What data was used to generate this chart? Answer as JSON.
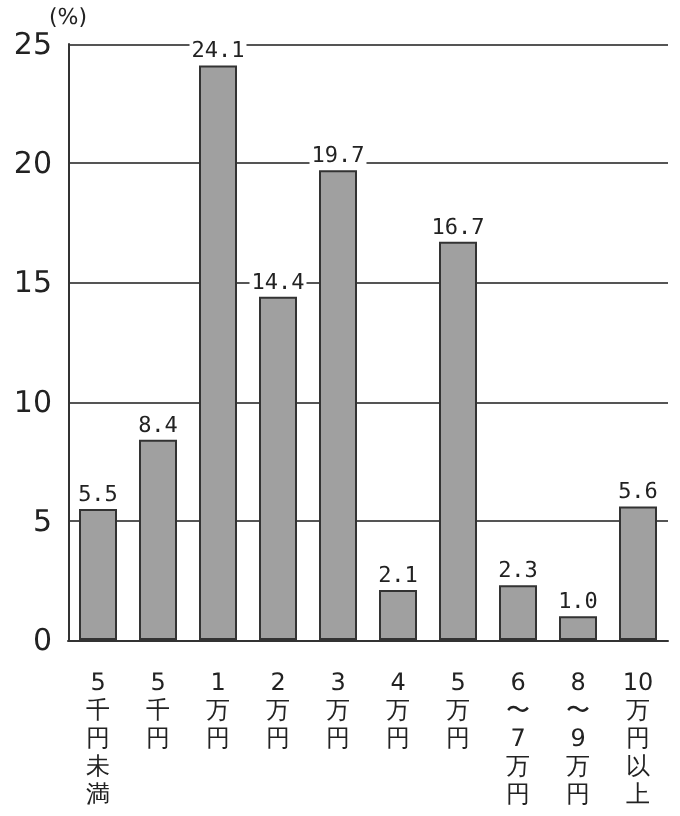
{
  "chart_data": {
    "type": "bar",
    "ylabel": "(%)",
    "categories": [
      "5千円未満",
      "5千円",
      "1万円",
      "2万円",
      "3万円",
      "4万円",
      "5万円",
      "6〜7万円",
      "8〜9万円",
      "10万円以上"
    ],
    "values": [
      5.5,
      8.4,
      24.1,
      14.4,
      19.7,
      2.1,
      16.7,
      2.3,
      1.0,
      5.6
    ],
    "value_labels": [
      "5.5",
      "8.4",
      "24.1",
      "14.4",
      "19.7",
      "2.1",
      "16.7",
      "2.3",
      "1.0",
      "5.6"
    ],
    "color": "#a0a0a0",
    "ylim": [
      0,
      25
    ],
    "yticks": [
      0,
      5,
      10,
      15,
      20,
      25
    ],
    "grid": "y"
  }
}
